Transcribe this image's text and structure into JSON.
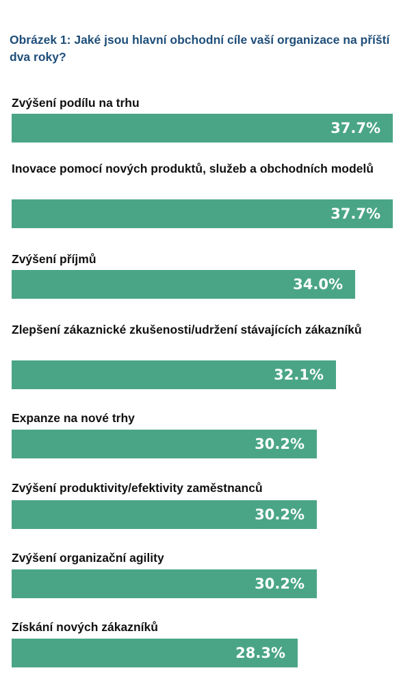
{
  "chart_title": "Obrázek 1: Jaké jsou hlavní obchodní cíle vaší organizace na příští dva roky?",
  "colors": {
    "bar": "#4aa586",
    "title": "#1f4e79",
    "label": "#111111",
    "value_text": "#ffffff"
  },
  "chart_data": {
    "type": "bar",
    "orientation": "horizontal",
    "title": "Obrázek 1: Jaké jsou hlavní obchodní cíle vaší organizace na příští dva roky?",
    "unit": "%",
    "categories": [
      "Zvýšení podílu na trhu",
      "Inovace pomocí nových produktů, služeb a obchodních modelů",
      "Zvýšení příjmů",
      "Zlepšení zákaznické zkušenosti/udržení stávajících zákazníků",
      "Expanze na nové trhy",
      "Zvýšení produktivity/efektivity zaměstnanců",
      "Zvýšení organizační agility",
      "Získání nových zákazníků"
    ],
    "values": [
      37.7,
      37.7,
      34.0,
      32.1,
      30.2,
      30.2,
      30.2,
      28.3
    ],
    "value_labels": [
      "37.7%",
      "37.7%",
      "34.0%",
      "32.1%",
      "30.2%",
      "30.2%",
      "30.2%",
      "28.3%"
    ],
    "xlim": [
      0,
      37.7
    ],
    "grid": false,
    "legend": false
  }
}
